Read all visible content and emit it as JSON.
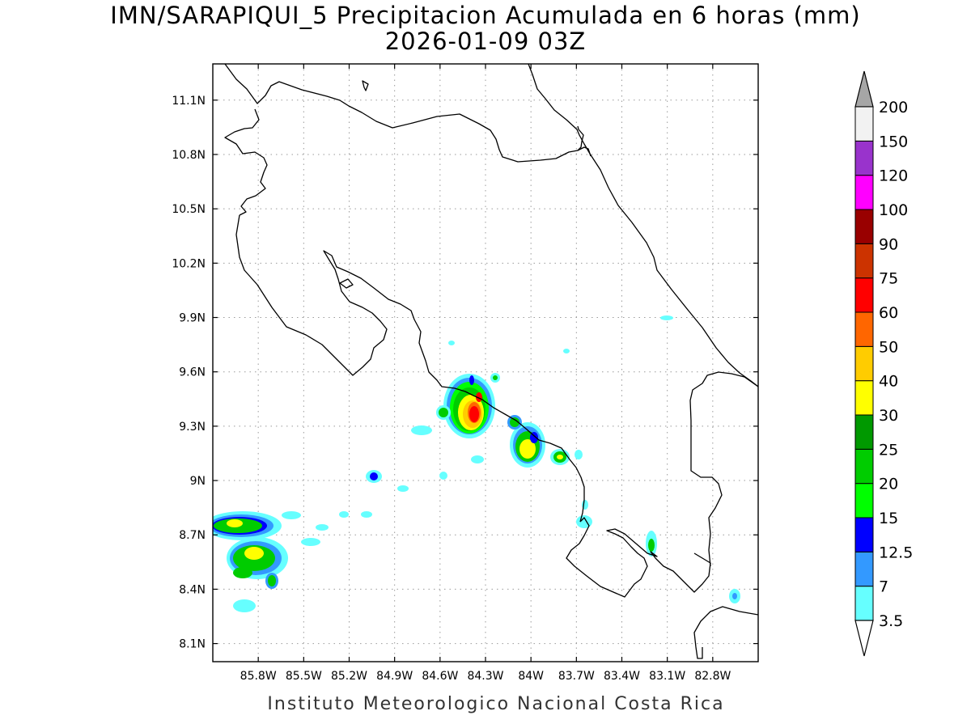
{
  "title": {
    "line1": "IMN/SARAPIQUI_5 Precipitacion Acumulada en 6 horas (mm)",
    "line2": "2026-01-09 03Z"
  },
  "credit": "Instituto Meteorologico Nacional Costa Rica",
  "map": {
    "lon_range": [
      -86.1,
      -82.5
    ],
    "lat_range": [
      8.0,
      11.3
    ],
    "lat_ticks": [
      {
        "value": 11.1,
        "label": "11.1N"
      },
      {
        "value": 10.8,
        "label": "10.8N"
      },
      {
        "value": 10.5,
        "label": "10.5N"
      },
      {
        "value": 10.2,
        "label": "10.2N"
      },
      {
        "value": 9.9,
        "label": "9.9N"
      },
      {
        "value": 9.6,
        "label": "9.6N"
      },
      {
        "value": 9.3,
        "label": "9.3N"
      },
      {
        "value": 9.0,
        "label": "9N"
      },
      {
        "value": 8.7,
        "label": "8.7N"
      },
      {
        "value": 8.4,
        "label": "8.4N"
      },
      {
        "value": 8.1,
        "label": "8.1N"
      }
    ],
    "lon_ticks": [
      {
        "value": -85.8,
        "label": "85.8W"
      },
      {
        "value": -85.5,
        "label": "85.5W"
      },
      {
        "value": -85.2,
        "label": "85.2W"
      },
      {
        "value": -84.9,
        "label": "84.9W"
      },
      {
        "value": -84.6,
        "label": "84.6W"
      },
      {
        "value": -84.3,
        "label": "84.3W"
      },
      {
        "value": -84.0,
        "label": "84W"
      },
      {
        "value": -83.7,
        "label": "83.7W"
      },
      {
        "value": -83.4,
        "label": "83.4W"
      },
      {
        "value": -83.1,
        "label": "83.1W"
      },
      {
        "value": -82.8,
        "label": "82.8W"
      }
    ],
    "grid": true
  },
  "colorbar": {
    "levels": [
      {
        "label": "3.5",
        "color": "#66ffff"
      },
      {
        "label": "7",
        "color": "#3399ff"
      },
      {
        "label": "12.5",
        "color": "#0000ff"
      },
      {
        "label": "15",
        "color": "#00ff00"
      },
      {
        "label": "20",
        "color": "#00cc00"
      },
      {
        "label": "25",
        "color": "#009900"
      },
      {
        "label": "30",
        "color": "#ffff00"
      },
      {
        "label": "40",
        "color": "#ffcc00"
      },
      {
        "label": "50",
        "color": "#ff6600"
      },
      {
        "label": "60",
        "color": "#ff0000"
      },
      {
        "label": "75",
        "color": "#cc3300"
      },
      {
        "label": "90",
        "color": "#990000"
      },
      {
        "label": "100",
        "color": "#ff00ff"
      },
      {
        "label": "120",
        "color": "#9933cc"
      },
      {
        "label": "150",
        "color": "#f2f2f2"
      },
      {
        "label": "200",
        "color": null
      }
    ],
    "under_color": "#ffffff",
    "over_color": "#a6a6a6"
  }
}
